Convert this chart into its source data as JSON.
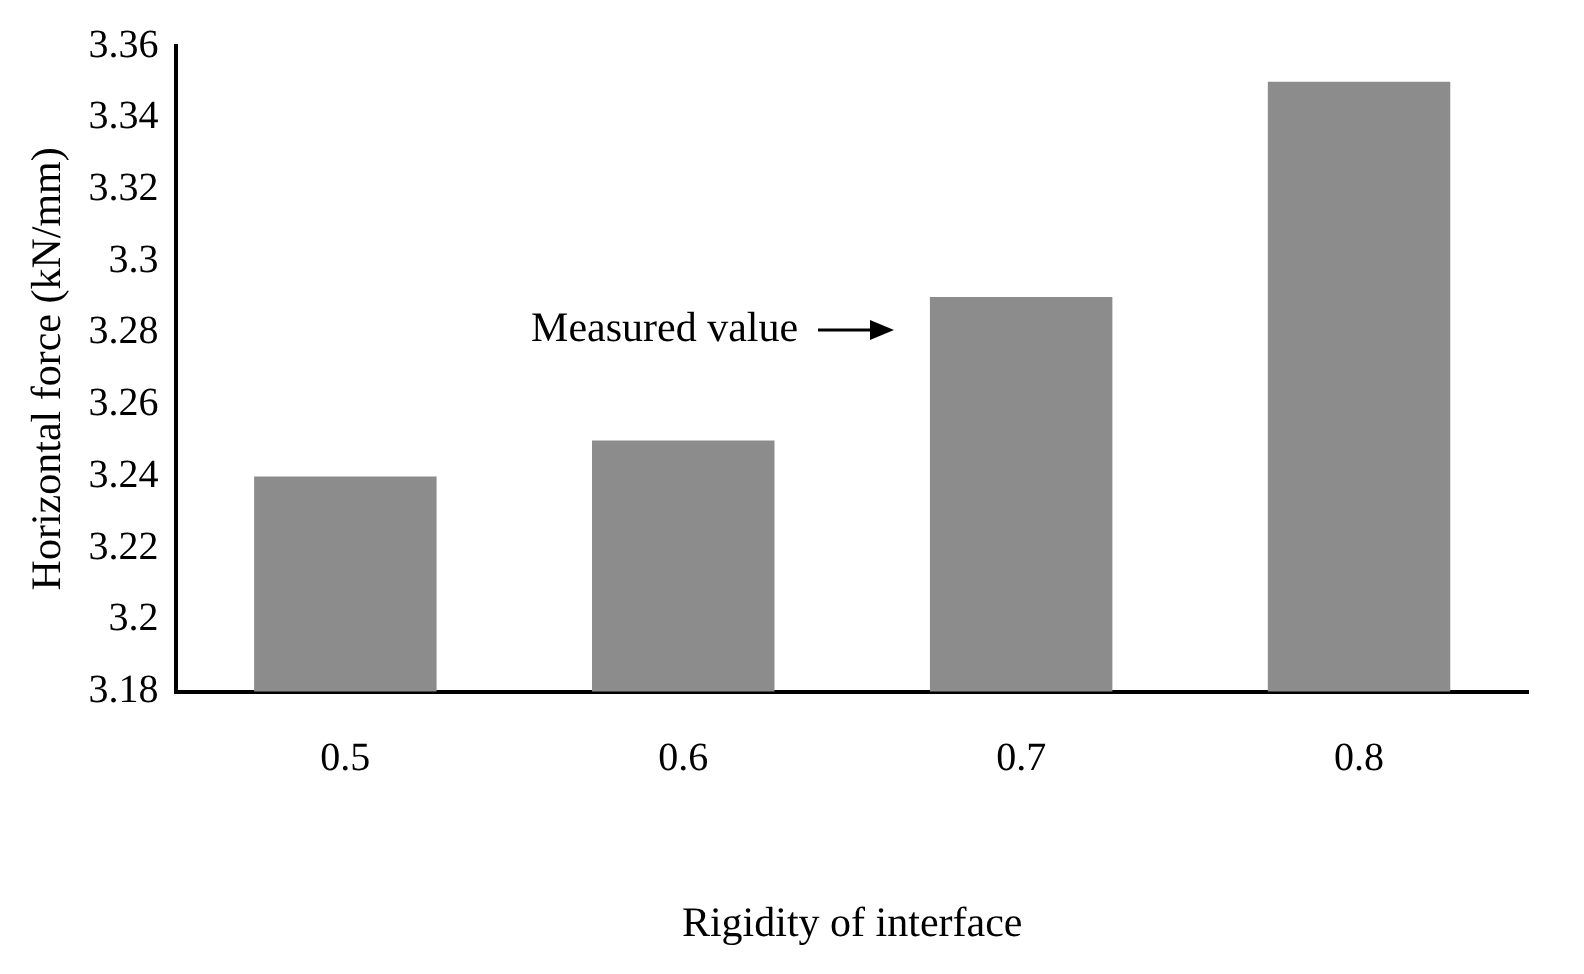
{
  "chart_data": {
    "type": "bar",
    "xlabel": "Rigidity of interface",
    "ylabel": "Horizontal force (kN/mm)",
    "categories": [
      "0.5",
      "0.6",
      "0.7",
      "0.8"
    ],
    "values": [
      3.24,
      3.25,
      3.29,
      3.35
    ],
    "color": "#8c8c8c",
    "ylim": [
      3.18,
      3.36
    ],
    "yticks": [
      3.18,
      3.2,
      3.22,
      3.24,
      3.26,
      3.28,
      3.3,
      3.32,
      3.34,
      3.36
    ],
    "grid": false,
    "legend": false,
    "annotations": [
      "Measured value"
    ]
  }
}
